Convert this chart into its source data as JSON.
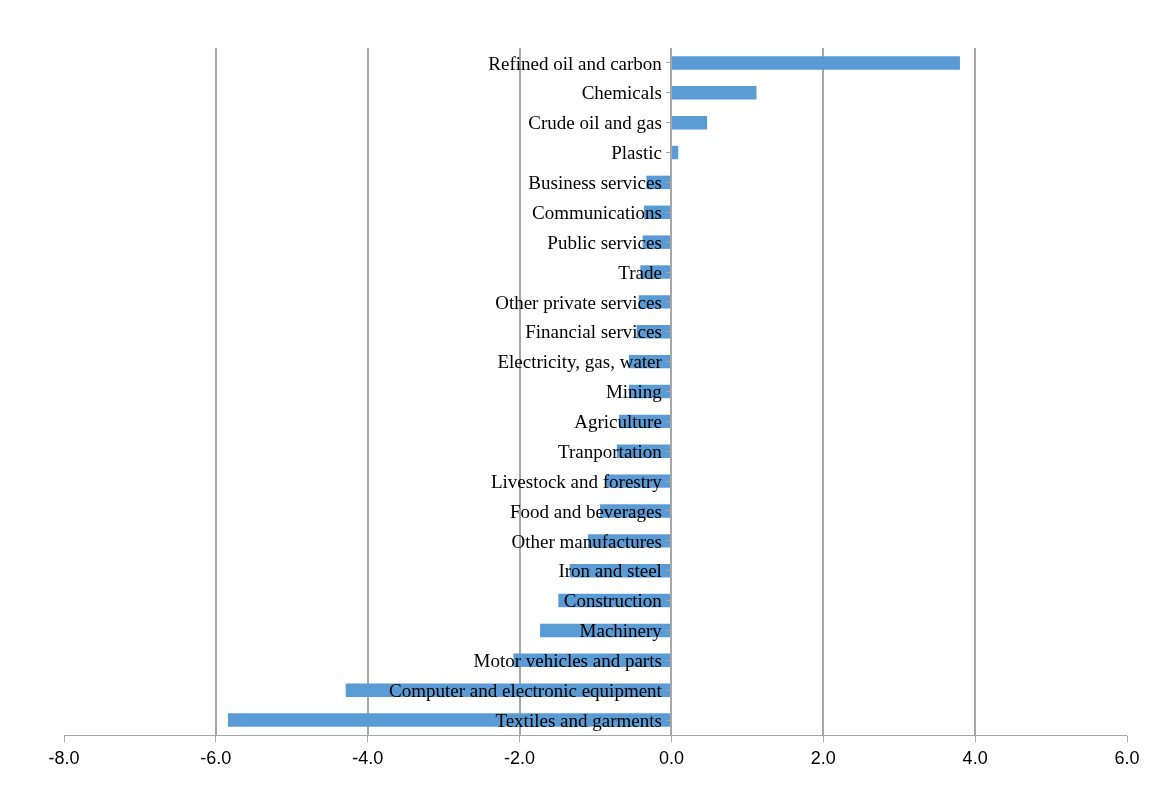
{
  "chart_data": {
    "type": "bar",
    "orientation": "horizontal",
    "categories": [
      "Refined oil and carbon",
      "Chemicals",
      "Crude oil and gas",
      "Plastic",
      "Business services",
      "Communications",
      "Public services",
      "Trade",
      "Other private services",
      "Financial services",
      "Electricity, gas, water",
      "Mining",
      "Agriculture",
      "Tranportation",
      "Livestock and forestry",
      "Food and beverages",
      "Other manufactures",
      "Iron and steel",
      "Construction",
      "Machinery",
      "Motor vehicles and parts",
      "Computer and electronic equipment",
      "Textiles and garments"
    ],
    "values": [
      3.8,
      1.12,
      0.47,
      0.09,
      -0.33,
      -0.36,
      -0.38,
      -0.41,
      -0.43,
      -0.46,
      -0.56,
      -0.56,
      -0.69,
      -0.72,
      -0.86,
      -0.94,
      -1.1,
      -1.34,
      -1.49,
      -1.73,
      -2.08,
      -4.29,
      -5.84
    ],
    "color": "#5b9bd5",
    "xlim": [
      -8,
      6
    ],
    "xticks": [
      {
        "value": -8,
        "label": "-8.0"
      },
      {
        "value": -6,
        "label": "-6.0"
      },
      {
        "value": -4,
        "label": "-4.0"
      },
      {
        "value": -2,
        "label": "-2.0"
      },
      {
        "value": 0,
        "label": "0.0"
      },
      {
        "value": 2,
        "label": "2.0"
      },
      {
        "value": 4,
        "label": "4.0"
      },
      {
        "value": 6,
        "label": "6.0"
      }
    ],
    "grid": "x"
  }
}
